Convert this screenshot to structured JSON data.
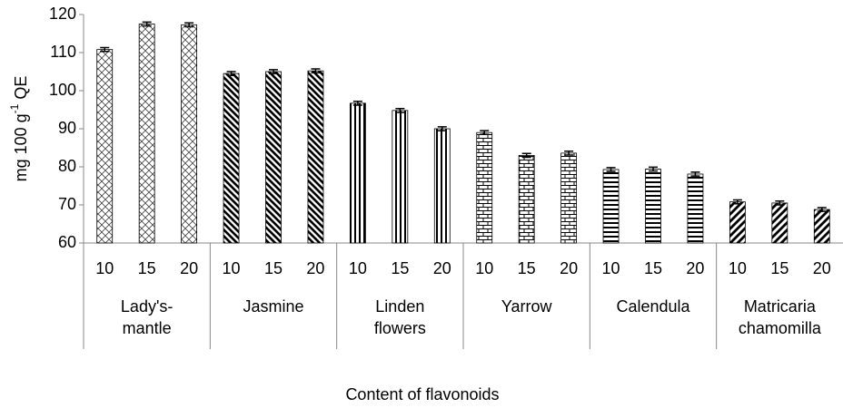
{
  "chart_data": {
    "type": "bar",
    "xlabel": "Content of flavonoids",
    "ylabel": [
      "mg 100 g",
      "-1",
      " QE"
    ],
    "ylim": [
      60,
      120
    ],
    "yticks": [
      60,
      70,
      80,
      90,
      100,
      110,
      120
    ],
    "groups": [
      {
        "label": [
          "Lady's-",
          "mantle"
        ],
        "categories": [
          "10",
          "15",
          "20"
        ],
        "values": [
          110.8,
          117.5,
          117.3
        ],
        "errors": [
          0.5,
          0.5,
          0.5
        ],
        "pattern": "crosshatch"
      },
      {
        "label": [
          "Jasmine"
        ],
        "categories": [
          "10",
          "15",
          "20"
        ],
        "values": [
          104.5,
          105.0,
          105.2
        ],
        "errors": [
          0.5,
          0.5,
          0.5
        ],
        "pattern": "back-diagonal"
      },
      {
        "label": [
          "Linden",
          "flowers"
        ],
        "categories": [
          "10",
          "15",
          "20"
        ],
        "values": [
          96.7,
          94.8,
          90.0
        ],
        "errors": [
          0.5,
          0.5,
          0.5
        ],
        "pattern": "vertical"
      },
      {
        "label": [
          "Yarrow"
        ],
        "categories": [
          "10",
          "15",
          "20"
        ],
        "values": [
          89.0,
          83.0,
          83.6
        ],
        "errors": [
          0.5,
          0.5,
          0.5
        ],
        "pattern": "brick"
      },
      {
        "label": [
          "Calendula"
        ],
        "categories": [
          "10",
          "15",
          "20"
        ],
        "values": [
          79.3,
          79.4,
          78.1
        ],
        "errors": [
          0.5,
          0.5,
          0.5
        ],
        "pattern": "horizontal"
      },
      {
        "label": [
          "Matricaria",
          "chamomilla"
        ],
        "categories": [
          "10",
          "15",
          "20"
        ],
        "values": [
          70.8,
          70.5,
          68.8
        ],
        "errors": [
          0.5,
          0.5,
          0.5
        ],
        "pattern": "diagonal"
      }
    ]
  }
}
